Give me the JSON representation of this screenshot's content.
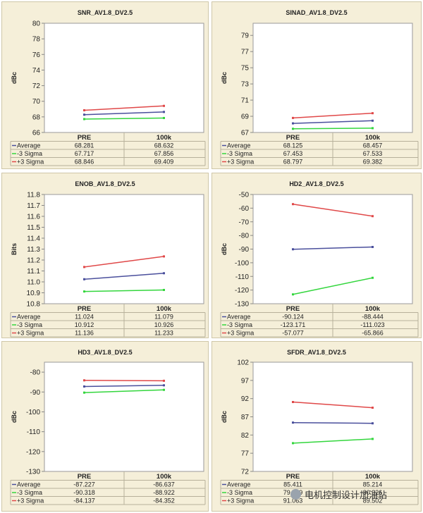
{
  "colors": {
    "average": "#4a4f9c",
    "minus3": "#33d63d",
    "plus3": "#e04848",
    "panel_bg": "#f5efd9",
    "plot_bg": "#ffffff"
  },
  "watermark": {
    "text": "电机控制设计加油站",
    "icon": "wechat-icon"
  },
  "chart_data": [
    {
      "type": "line",
      "title": "SNR_AV1.8_DV2.5",
      "ylabel": "dBc",
      "categories": [
        "PRE",
        "100k"
      ],
      "yticks": [
        "80",
        "78",
        "76",
        "74",
        "72",
        "70",
        "68",
        "66"
      ],
      "ylim": [
        66,
        80
      ],
      "series": [
        {
          "name": "Average",
          "values": [
            68.281,
            68.632
          ],
          "labels": [
            "68.281",
            "68.632"
          ]
        },
        {
          "name": "-3 Sigma",
          "values": [
            67.717,
            67.856
          ],
          "labels": [
            "67.717",
            "67.856"
          ]
        },
        {
          "name": "+3 Sigma",
          "values": [
            68.846,
            69.409
          ],
          "labels": [
            "68.846",
            "69.409"
          ]
        }
      ]
    },
    {
      "type": "line",
      "title": "SINAD_AV1.8_DV2.5",
      "ylabel": "dBc",
      "categories": [
        "PRE",
        "100k"
      ],
      "yticks": [
        "79",
        "77",
        "75",
        "73",
        "71",
        "69",
        "67"
      ],
      "ylim": [
        67,
        80.5
      ],
      "series": [
        {
          "name": "Average",
          "values": [
            68.125,
            68.457
          ],
          "labels": [
            "68.125",
            "68.457"
          ]
        },
        {
          "name": "-3 Sigma",
          "values": [
            67.453,
            67.533
          ],
          "labels": [
            "67.453",
            "67.533"
          ]
        },
        {
          "name": "+3 Sigma",
          "values": [
            68.797,
            69.382
          ],
          "labels": [
            "68.797",
            "69.382"
          ]
        }
      ]
    },
    {
      "type": "line",
      "title": "ENOB_AV1.8_DV2.5",
      "ylabel": "Bits",
      "categories": [
        "PRE",
        "100k"
      ],
      "yticks": [
        "11.8",
        "11.7",
        "11.6",
        "11.5",
        "11.4",
        "11.3",
        "11.2",
        "11.1",
        "11.0",
        "10.9",
        "10.8"
      ],
      "ylim": [
        10.8,
        11.8
      ],
      "series": [
        {
          "name": "Average",
          "values": [
            11.024,
            11.079
          ],
          "labels": [
            "11.024",
            "11.079"
          ]
        },
        {
          "name": "-3 Sigma",
          "values": [
            10.912,
            10.926
          ],
          "labels": [
            "10.912",
            "10.926"
          ]
        },
        {
          "name": "+3 Sigma",
          "values": [
            11.136,
            11.233
          ],
          "labels": [
            "11.136",
            "11.233"
          ]
        }
      ]
    },
    {
      "type": "line",
      "title": "HD2_AV1.8_DV2.5",
      "ylabel": "dBc",
      "categories": [
        "PRE",
        "100k"
      ],
      "yticks": [
        "-50",
        "-60",
        "-70",
        "-80",
        "-90",
        "-100",
        "-110",
        "-120",
        "-130"
      ],
      "ylim": [
        -130,
        -50
      ],
      "series": [
        {
          "name": "Average",
          "values": [
            -90.124,
            -88.444
          ],
          "labels": [
            "-90.124",
            "-88.444"
          ]
        },
        {
          "name": "-3 Sigma",
          "values": [
            -123.171,
            -111.023
          ],
          "labels": [
            "-123.171",
            "-111.023"
          ]
        },
        {
          "name": "+3 Sigma",
          "values": [
            -57.077,
            -65.866
          ],
          "labels": [
            "-57.077",
            "-65.866"
          ]
        }
      ]
    },
    {
      "type": "line",
      "title": "HD3_AV1.8_DV2.5",
      "ylabel": "dBc",
      "categories": [
        "PRE",
        "100k"
      ],
      "yticks": [
        "-80",
        "-90",
        "-100",
        "-110",
        "-120",
        "-130"
      ],
      "ylim": [
        -130,
        -75
      ],
      "series": [
        {
          "name": "Average",
          "values": [
            -87.227,
            -86.637
          ],
          "labels": [
            "-87.227",
            "-86.637"
          ]
        },
        {
          "name": "-3 Sigma",
          "values": [
            -90.318,
            -88.922
          ],
          "labels": [
            "-90.318",
            "-88.922"
          ]
        },
        {
          "name": "+3 Sigma",
          "values": [
            -84.137,
            -84.352
          ],
          "labels": [
            "-84.137",
            "-84.352"
          ]
        }
      ]
    },
    {
      "type": "line",
      "title": "SFDR_AV1.8_DV2.5",
      "ylabel": "dBc",
      "categories": [
        "PRE",
        "100k"
      ],
      "yticks": [
        "102",
        "97",
        "92",
        "87",
        "82",
        "77",
        "72"
      ],
      "ylim": [
        72,
        102
      ],
      "series": [
        {
          "name": "Average",
          "values": [
            85.411,
            85.214
          ],
          "labels": [
            "85.411",
            "85.214"
          ]
        },
        {
          "name": "-3 Sigma",
          "values": [
            79.759,
            80.926
          ],
          "labels": [
            "79.759",
            "80.926"
          ]
        },
        {
          "name": "+3 Sigma",
          "values": [
            91.063,
            89.502
          ],
          "labels": [
            "91.063",
            "89.502"
          ]
        }
      ]
    }
  ]
}
